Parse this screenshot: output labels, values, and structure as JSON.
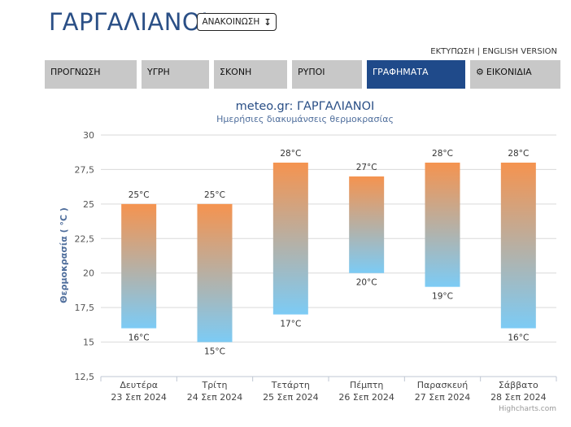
{
  "header": {
    "title": "ΓΑΡΓΑΛΙΑΝΟΙ",
    "announce_label": "ΑΝΑΚΟΙΝΩΣΗ",
    "announce_icon": "arrow-down-icon",
    "print_label": "ΕΚΤΥΠΩΣΗ",
    "link_sep": "|",
    "english_label": "ENGLISH VERSION"
  },
  "tabs": [
    {
      "label": "ΠΡΟΓΝΩΣΗ",
      "active": false
    },
    {
      "label": "ΥΓΡΗ",
      "active": false
    },
    {
      "label": "ΣΚΟΝΗ",
      "active": false
    },
    {
      "label": "ΡΥΠΟΙ",
      "active": false
    },
    {
      "label": "ΓΡΑΦΗΜΑΤΑ",
      "active": true
    },
    {
      "label": "ΕΙΚΟΝΙΔΙΑ",
      "active": false,
      "icon": "gear-icon"
    }
  ],
  "colors": {
    "accent": "#1f4a8a",
    "tab_bg": "#c8c8c8",
    "bar_top": "#f5934f",
    "bar_bottom": "#7ccbf5"
  },
  "chart_data": {
    "type": "bar",
    "subtype": "columnrange",
    "title": "meteo.gr: ΓΑΡΓΑΛΙΑΝΟΙ",
    "subtitle": "Ημερήσιες διακυμάνσεις θερμοκρασίας",
    "ylabel": "Θερμοκρασία ( °C )",
    "xlabel": "",
    "ylim": [
      12.5,
      30
    ],
    "yticks": [
      "12,5",
      "15",
      "17,5",
      "20",
      "22,5",
      "25",
      "27,5",
      "30"
    ],
    "grid": true,
    "categories": [
      {
        "day": "Δευτέρα",
        "date": "23 Σεπ 2024"
      },
      {
        "day": "Τρίτη",
        "date": "24 Σεπ 2024"
      },
      {
        "day": "Τετάρτη",
        "date": "25 Σεπ 2024"
      },
      {
        "day": "Πέμπτη",
        "date": "26 Σεπ 2024"
      },
      {
        "day": "Παρασκευή",
        "date": "27 Σεπ 2024"
      },
      {
        "day": "Σάββατο",
        "date": "28 Σεπ 2024"
      }
    ],
    "low": [
      16,
      15,
      17,
      20,
      19,
      16
    ],
    "high": [
      25,
      25,
      28,
      27,
      28,
      28
    ],
    "unit": "°C",
    "credits": "Highcharts.com"
  }
}
